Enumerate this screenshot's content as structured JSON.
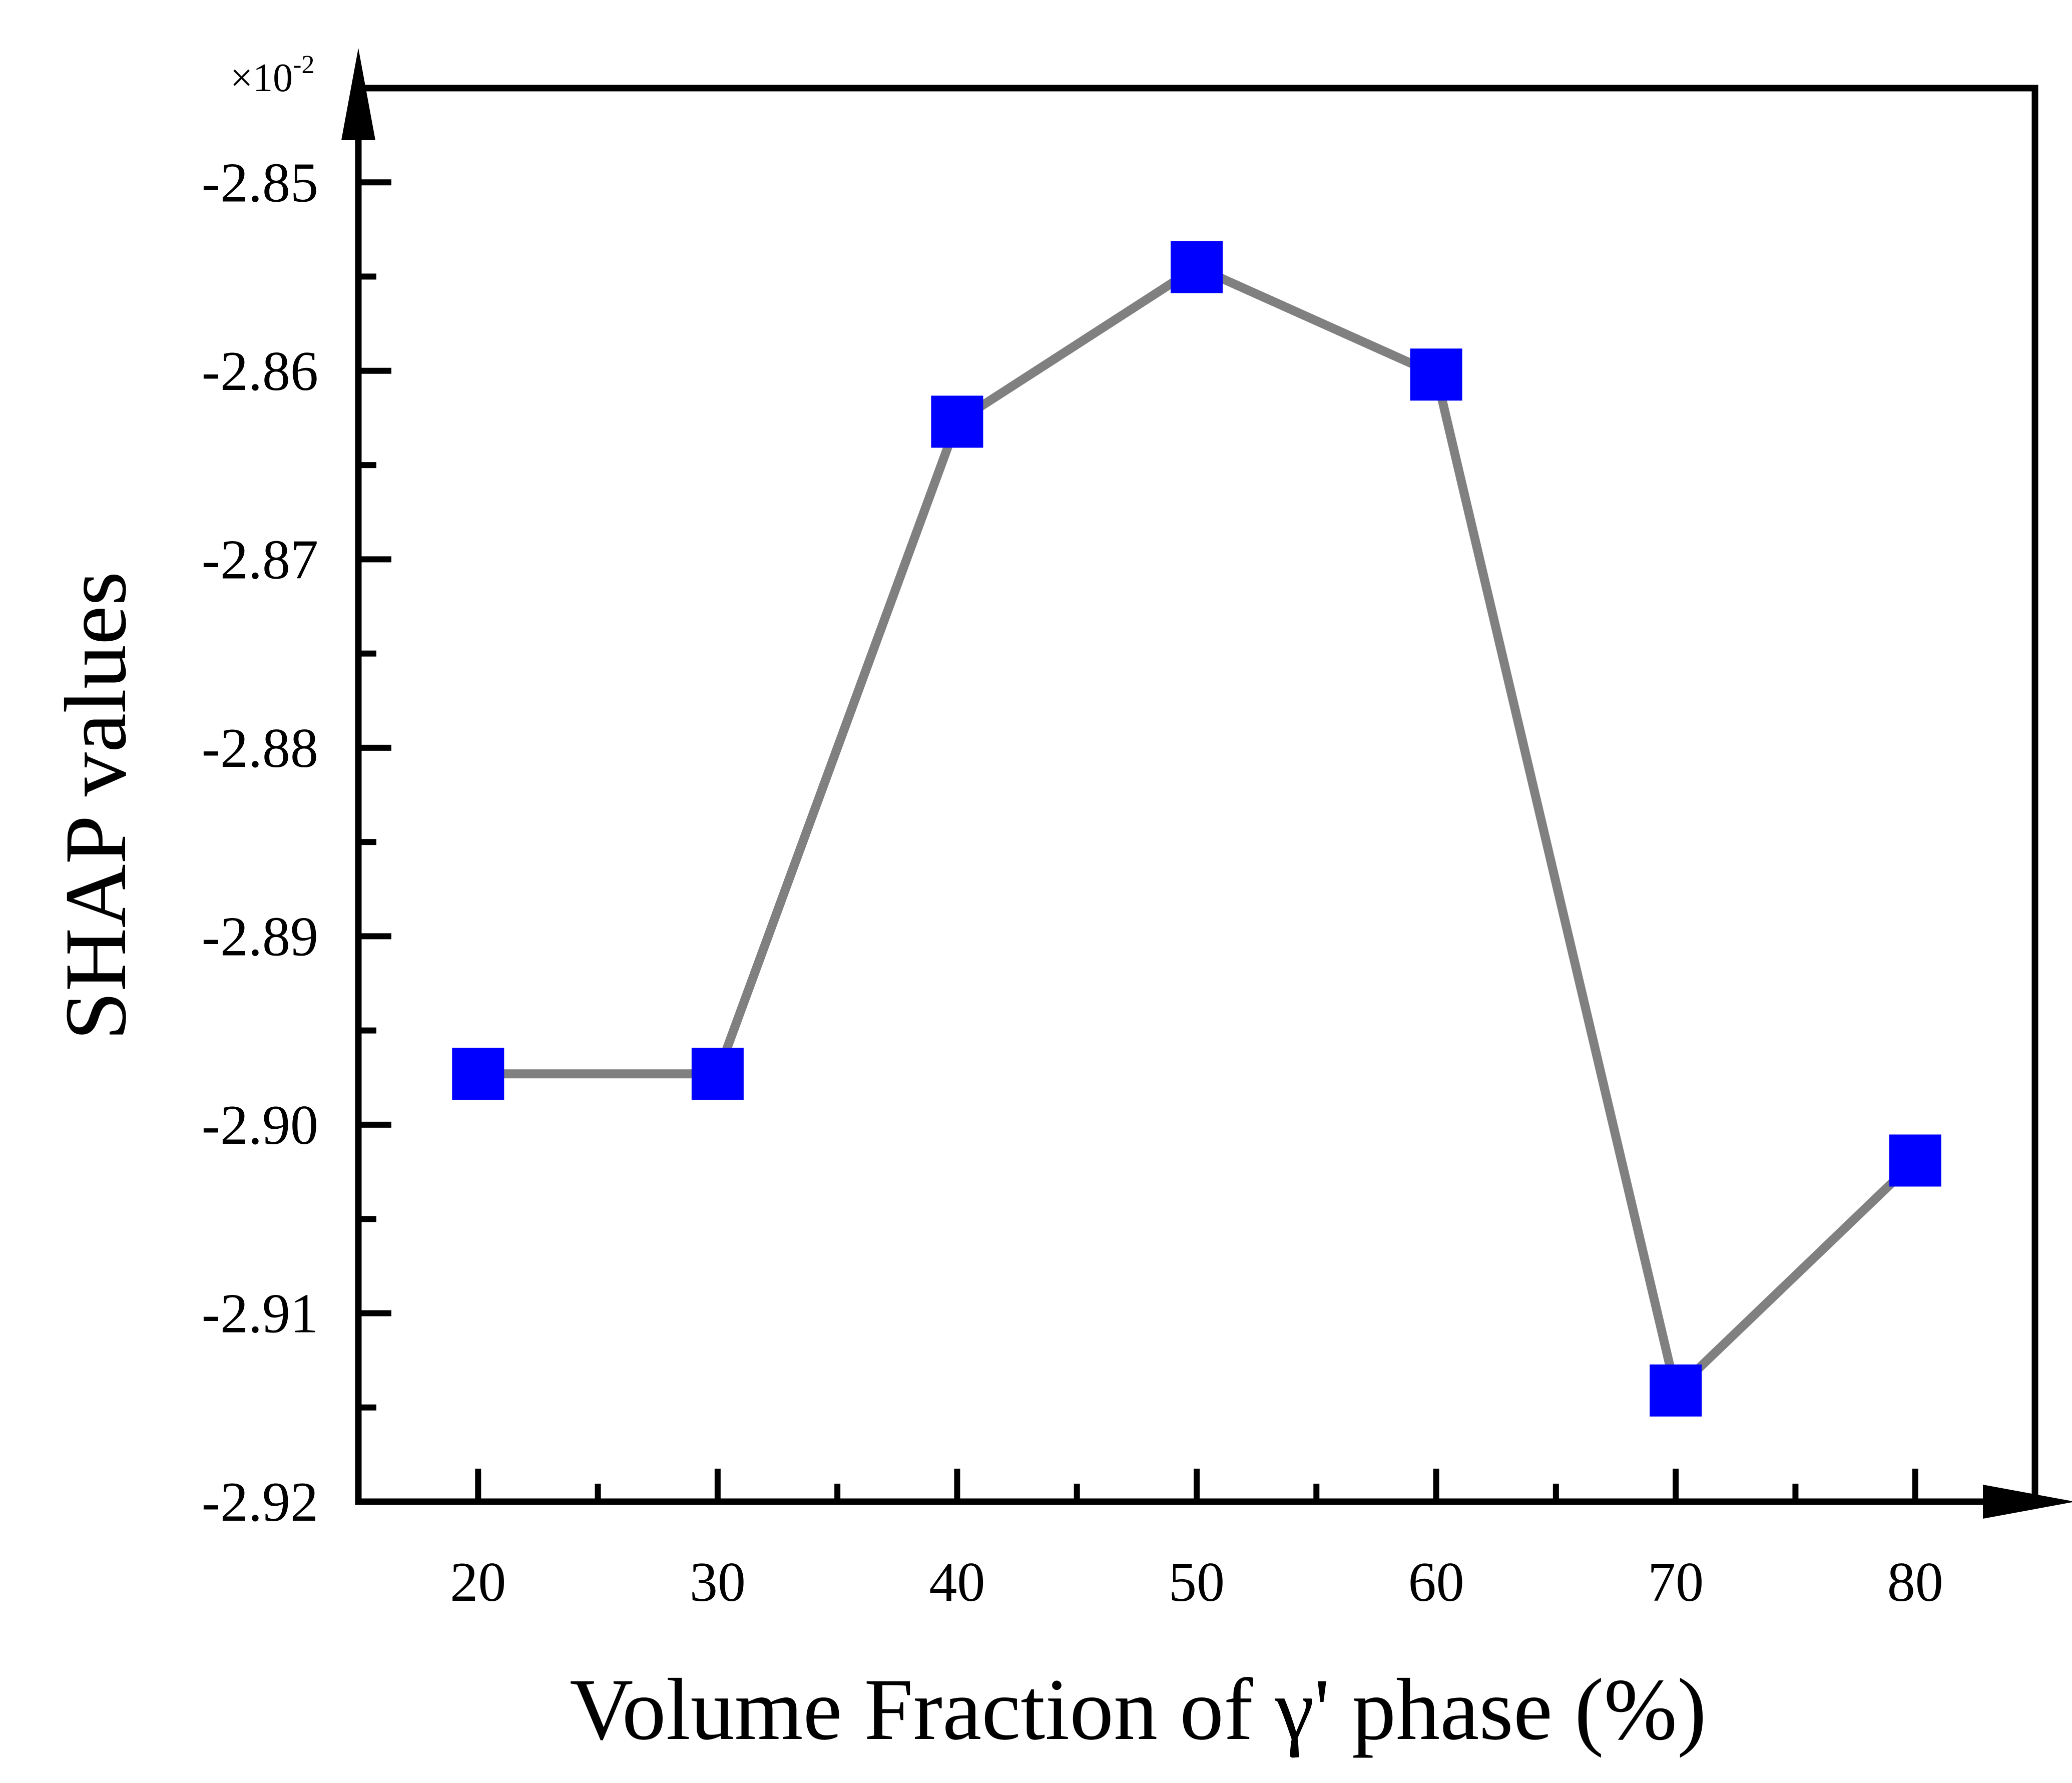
{
  "chart_data": {
    "type": "line",
    "xlabel": "Volume Fraction of γ' phase (%)",
    "ylabel": "SHAP values",
    "y_multiplier": {
      "base": "×10",
      "exponent": "-2"
    },
    "x": [
      20,
      30,
      40,
      50,
      60,
      70,
      80
    ],
    "series": [
      {
        "values": [
          -2.8973,
          -2.8973,
          -2.8627,
          -2.8545,
          -2.8602,
          -2.9141,
          -2.9019
        ]
      }
    ],
    "xlim": [
      15,
      85
    ],
    "ylim": [
      -2.92,
      -2.845
    ],
    "x_ticks": [
      20,
      30,
      40,
      50,
      60,
      70,
      80
    ],
    "x_tick_labels": [
      "20",
      "30",
      "40",
      "50",
      "60",
      "70",
      "80"
    ],
    "x_minor_ticks": [
      25,
      35,
      45,
      55,
      65,
      75
    ],
    "y_ticks": [
      -2.85,
      -2.86,
      -2.87,
      -2.88,
      -2.89,
      -2.9,
      -2.91,
      -2.92
    ],
    "y_tick_labels": [
      "-2.85",
      "-2.86",
      "-2.87",
      "-2.88",
      "-2.89",
      "-2.90",
      "-2.91",
      "-2.92"
    ],
    "y_minor_ticks": [
      -2.855,
      -2.865,
      -2.875,
      -2.885,
      -2.895,
      -2.905,
      -2.915
    ],
    "grid": false,
    "legend": "none",
    "line_color": "#808080",
    "marker_color": "#0000ff",
    "marker": "square"
  }
}
